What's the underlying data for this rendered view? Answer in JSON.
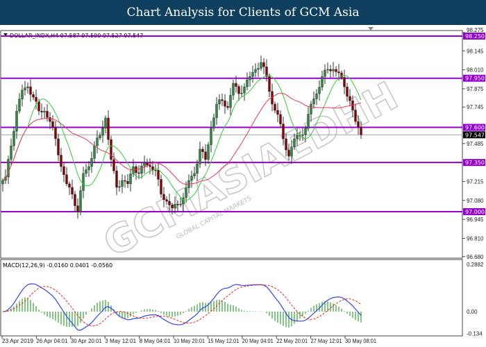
{
  "header": {
    "title": "Chart Analysis for Clients of GCM Asia"
  },
  "symbol_info": "DOLLAR_INDX,H4  97.587 97.590 97.527 97.547",
  "macd_info": "MACD(12,26,9) -0.0160 0.0401 -0.0560",
  "watermark": {
    "main": "GCMASIAEDHH",
    "sub": "GLOBAL CAPITAL MARKETS"
  },
  "colors": {
    "level_line": "#9400d3",
    "bull": "#2e8b3e",
    "bear": "#8b0000",
    "ma_fast": "#33cc33",
    "ma_slow": "#e8384f",
    "macd_line": "#3344ee",
    "signal_line": "#ee2222",
    "histogram": "#4caf50",
    "title_bg": "#0f3f5e"
  },
  "chart_data": [
    {
      "type": "candlestick",
      "symbol": "DOLLAR_INDX",
      "timeframe": "H4",
      "ylim": [
        96.68,
        98.29
      ],
      "y_ticks": [
        "98.275",
        "98.145",
        "98.010",
        "97.875",
        "97.745",
        "97.485",
        "97.215",
        "97.080",
        "96.945",
        "96.810",
        "96.680"
      ],
      "x_ticks": [
        "23 Apr 2019",
        "26 Apr 04:01",
        "30 Apr 20:01",
        "3 May 12:01",
        "8 May 04:01",
        "10 May 20:01",
        "15 May 12:01",
        "20 May 04:01",
        "22 May 20:01",
        "27 May 12:01",
        "30 May 08:01"
      ],
      "levels": [
        "98.250",
        "97.950",
        "97.600",
        "97.350",
        "97.000"
      ],
      "current_price": "97.547",
      "closes": [
        97.198,
        97.247,
        97.469,
        97.716,
        97.865,
        97.889,
        97.815,
        97.716,
        97.716,
        97.642,
        97.519,
        97.321,
        97.198,
        97.124,
        97.0,
        97.272,
        97.321,
        97.469,
        97.543,
        97.667,
        97.371,
        97.173,
        97.222,
        97.198,
        97.321,
        97.272,
        97.346,
        97.321,
        97.296,
        97.124,
        97.074,
        97.025,
        97.049,
        97.099,
        97.222,
        97.272,
        97.445,
        97.371,
        97.593,
        97.766,
        97.79,
        97.741,
        97.914,
        97.84,
        97.889,
        97.963,
        98.013,
        98.062,
        97.963,
        97.766,
        97.692,
        97.519,
        97.395,
        97.519,
        97.543,
        97.593,
        97.766,
        97.84,
        97.963,
        98.013,
        98.013,
        97.988,
        97.889,
        97.79,
        97.642,
        97.547
      ],
      "moving_averages": [
        "fast",
        "slow"
      ]
    },
    {
      "type": "macd",
      "params": "12,26,9",
      "ylim": [
        -0.134,
        0.2882
      ],
      "y_ticks": [
        "0.2882",
        "0.00",
        "-0.134"
      ],
      "last": {
        "macd": -0.016,
        "signal": 0.0401,
        "histogram": -0.056
      }
    }
  ]
}
